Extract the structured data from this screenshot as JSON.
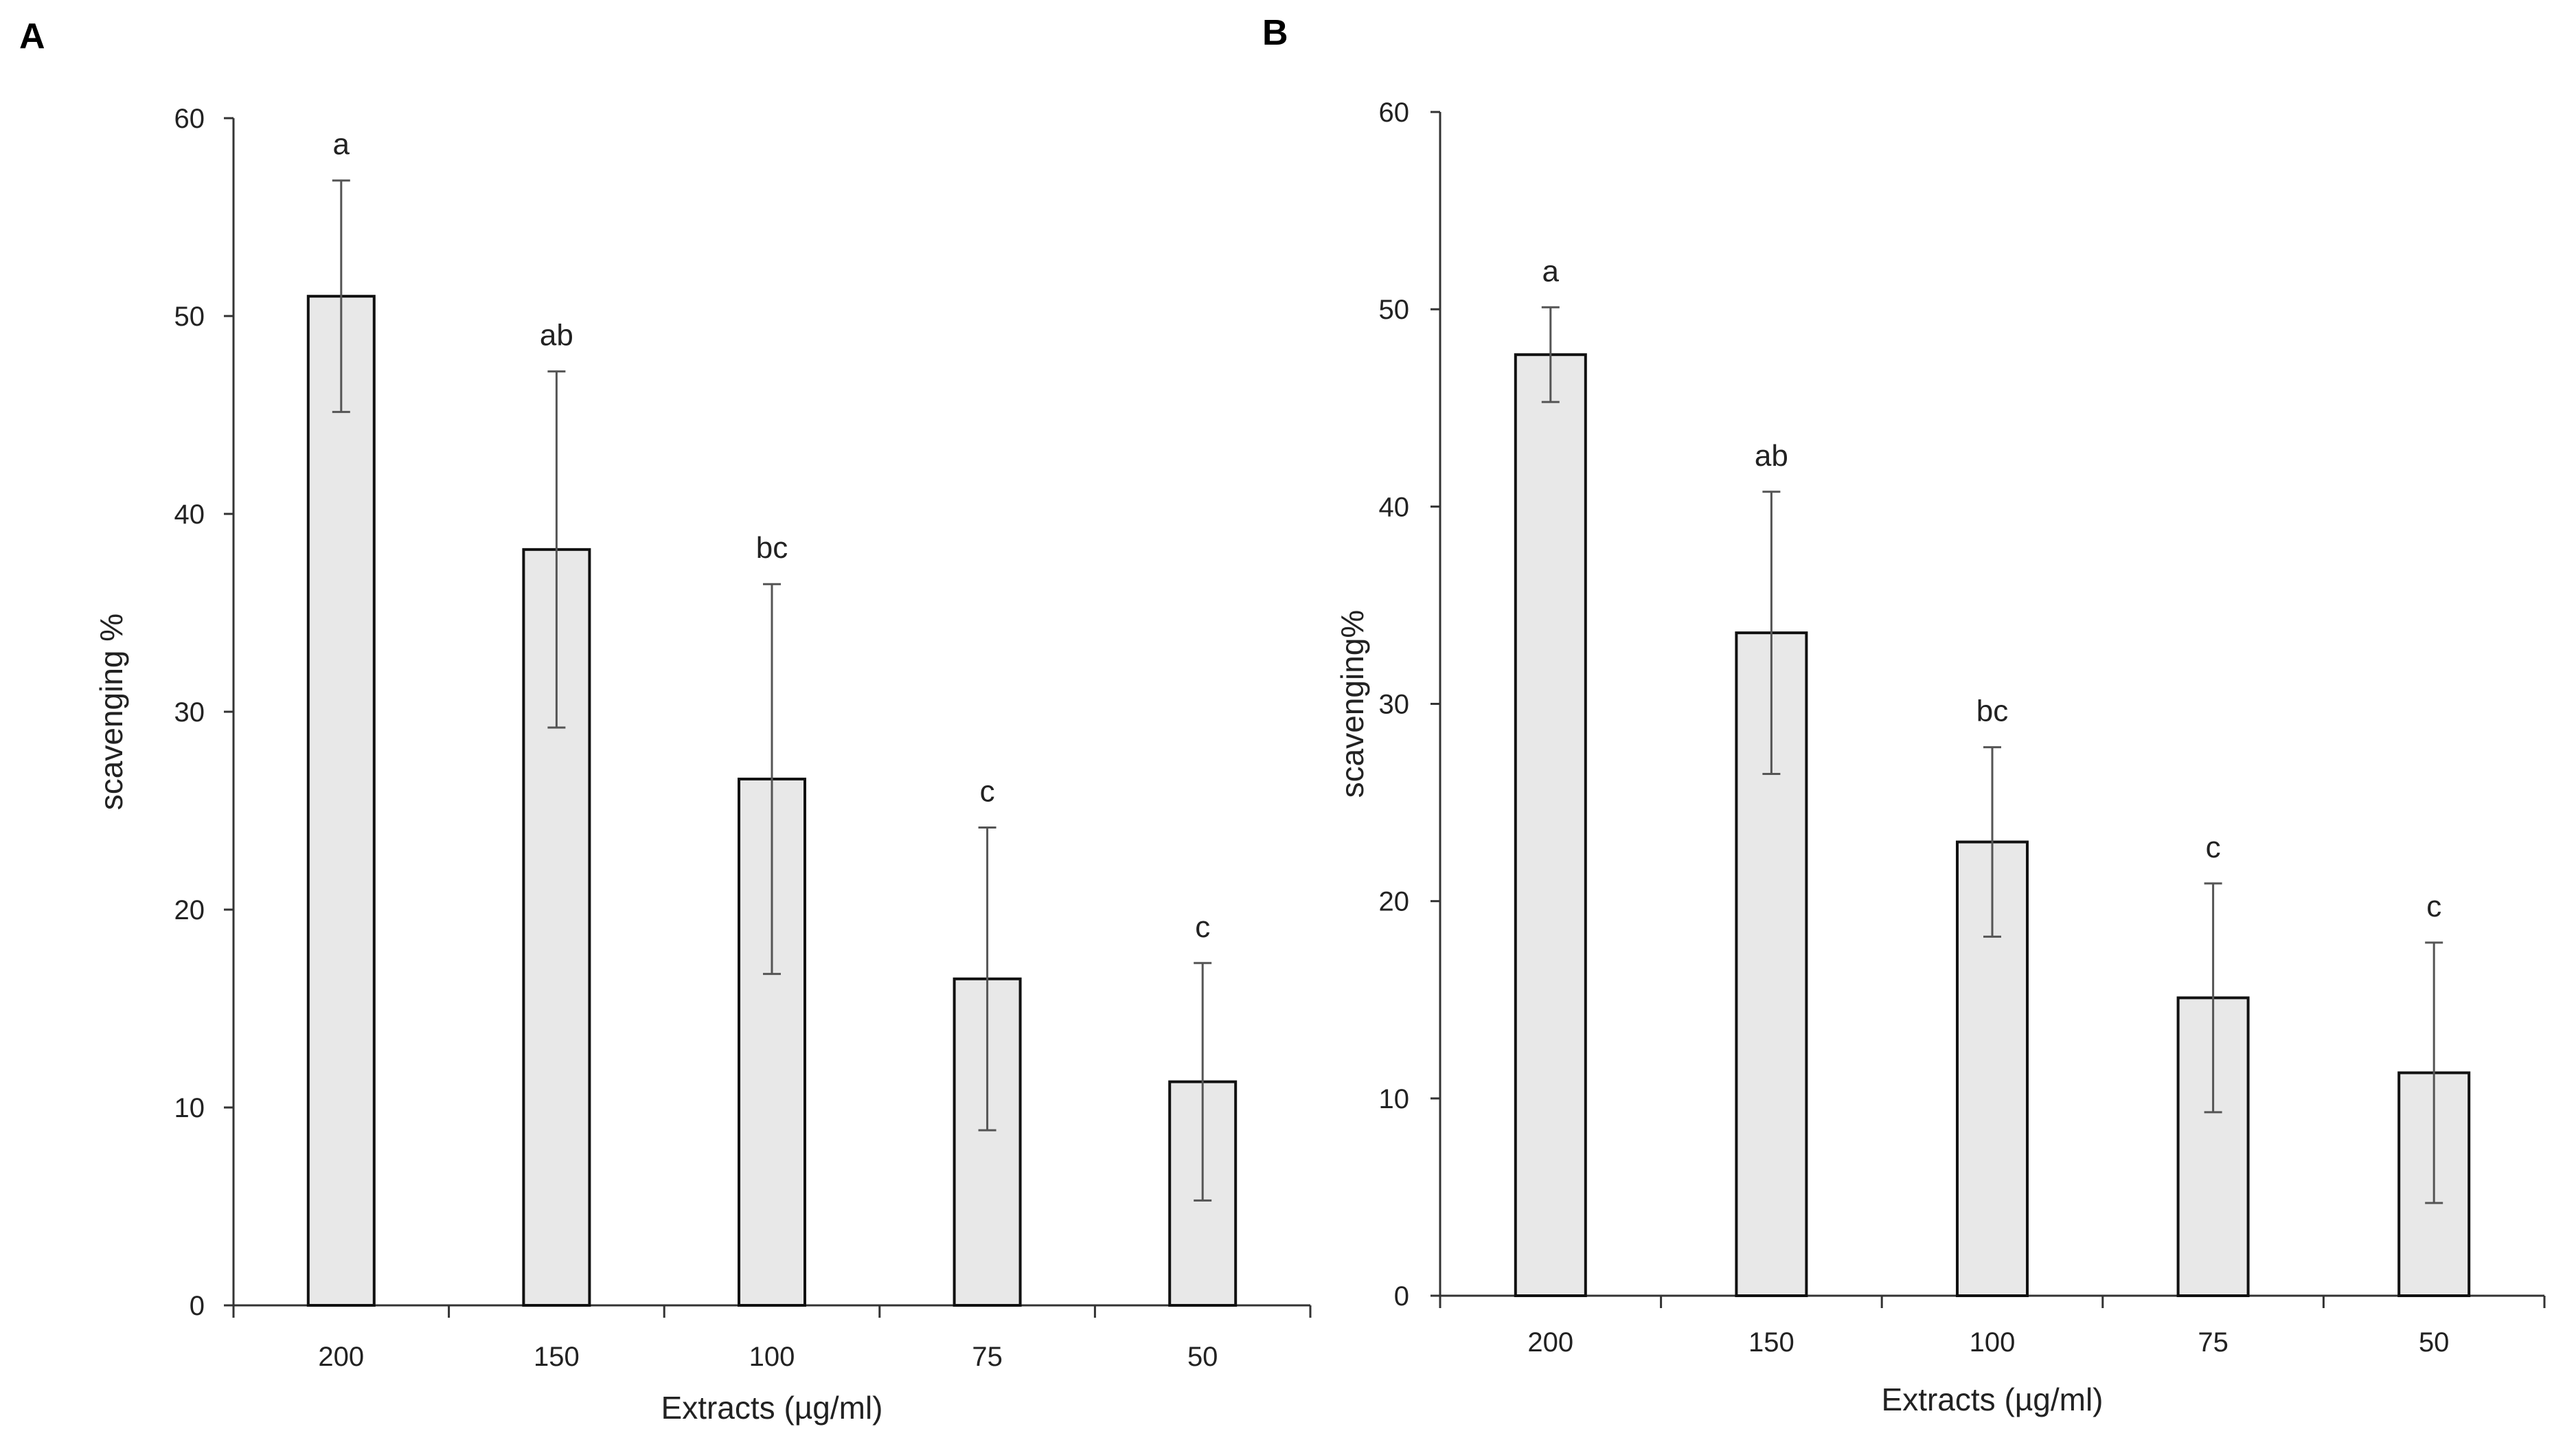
{
  "chart_data": [
    {
      "type": "bar",
      "panel": "A",
      "categories": [
        "200",
        "150",
        "100",
        "75",
        "50"
      ],
      "values": [
        51,
        38.2,
        26.6,
        16.5,
        11.3
      ],
      "errors": [
        5.85,
        9.0,
        9.85,
        7.65,
        6.0
      ],
      "significance": [
        "a",
        "ab",
        "bc",
        "c",
        "c"
      ],
      "xlabel": "Extracts  (µg/ml)",
      "ylabel": "scavenging  %",
      "ylim": [
        0,
        60
      ],
      "yticks": [
        0,
        10,
        20,
        30,
        40,
        50,
        60
      ],
      "grid": false,
      "bar_color": "#e8e8e8"
    },
    {
      "type": "bar",
      "panel": "B",
      "categories": [
        "200",
        "150",
        "100",
        "75",
        "50"
      ],
      "values": [
        47.7,
        33.6,
        23.0,
        15.1,
        11.3
      ],
      "errors": [
        2.4,
        7.15,
        4.8,
        5.8,
        6.6
      ],
      "significance": [
        "a",
        "ab",
        "bc",
        "c",
        "c"
      ],
      "xlabel": "Extracts  (µg/ml)",
      "ylabel": "scavenging%",
      "ylim": [
        0,
        60
      ],
      "yticks": [
        0,
        10,
        20,
        30,
        40,
        50,
        60
      ],
      "grid": false,
      "bar_color": "#e8e8e8"
    }
  ]
}
